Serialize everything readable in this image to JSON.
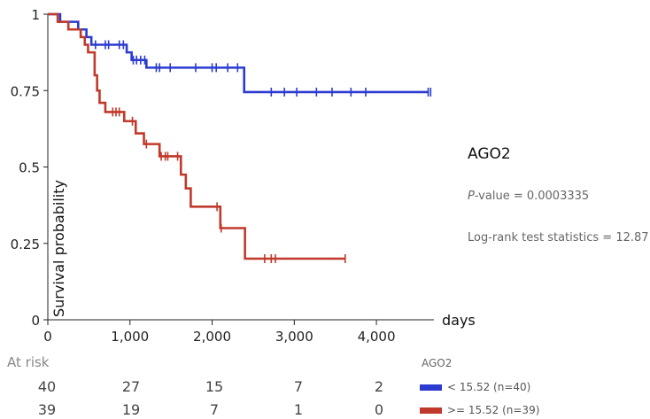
{
  "chart_data": {
    "type": "line",
    "subtype": "kaplan-meier",
    "ylabel": "Survival probability",
    "xlabel": "days",
    "xlim": [
      0,
      4700
    ],
    "ylim": [
      0,
      1
    ],
    "xticks": [
      0,
      1000,
      2000,
      3000,
      4000
    ],
    "xtick_labels": [
      "0",
      "1,000",
      "2,000",
      "3,000",
      "4,000"
    ],
    "yticks": [
      0,
      0.25,
      0.5,
      0.75,
      1
    ],
    "ytick_labels": [
      "0",
      "0.25",
      "0.5",
      "0.75",
      "1"
    ],
    "series": [
      {
        "name": "< 15.52 (n=40)",
        "color": "#2b3bd0",
        "steps": [
          [
            0,
            1
          ],
          [
            150,
            0.975
          ],
          [
            370,
            0.95
          ],
          [
            470,
            0.925
          ],
          [
            530,
            0.9
          ],
          [
            960,
            0.875
          ],
          [
            1020,
            0.85
          ],
          [
            1200,
            0.825
          ],
          [
            2390,
            0.745
          ],
          [
            4640,
            0.745
          ]
        ],
        "censor_times": [
          580,
          700,
          740,
          870,
          920,
          1040,
          1080,
          1130,
          1180,
          1320,
          1360,
          1490,
          1800,
          2000,
          2050,
          2190,
          2310,
          2720,
          2880,
          3030,
          3270,
          3460,
          3690,
          3870,
          4630,
          4660
        ]
      },
      {
        "name": ">= 15.52 (n=39)",
        "color": "#c0392b",
        "steps": [
          [
            0,
            1
          ],
          [
            120,
            0.975
          ],
          [
            250,
            0.95
          ],
          [
            400,
            0.925
          ],
          [
            450,
            0.9
          ],
          [
            490,
            0.875
          ],
          [
            570,
            0.8
          ],
          [
            600,
            0.75
          ],
          [
            630,
            0.71
          ],
          [
            700,
            0.68
          ],
          [
            930,
            0.65
          ],
          [
            1070,
            0.61
          ],
          [
            1170,
            0.575
          ],
          [
            1360,
            0.535
          ],
          [
            1620,
            0.475
          ],
          [
            1680,
            0.43
          ],
          [
            1740,
            0.37
          ],
          [
            2100,
            0.3
          ],
          [
            2400,
            0.2
          ],
          [
            3620,
            0.2
          ]
        ],
        "censor_times": [
          790,
          830,
          870,
          1030,
          1200,
          1380,
          1430,
          1460,
          1580,
          2060,
          2110,
          2640,
          2720,
          2770,
          3620
        ]
      }
    ]
  },
  "side_panel": {
    "gene": "AGO2",
    "pvalue_prefix": "P",
    "pvalue_rest": "-value = 0.0003335",
    "stat": "Log-rank test statistics = 12.87"
  },
  "at_risk": {
    "label": "At risk",
    "legend_title": "AGO2",
    "rows": [
      {
        "counts": [
          "40",
          "27",
          "15",
          "7",
          "2"
        ],
        "legend": "< 15.52 (n=40)",
        "color": "#2b3bd0"
      },
      {
        "counts": [
          "39",
          "19",
          "7",
          "1",
          "0"
        ],
        "legend": ">= 15.52 (n=39)",
        "color": "#c0392b"
      }
    ]
  }
}
